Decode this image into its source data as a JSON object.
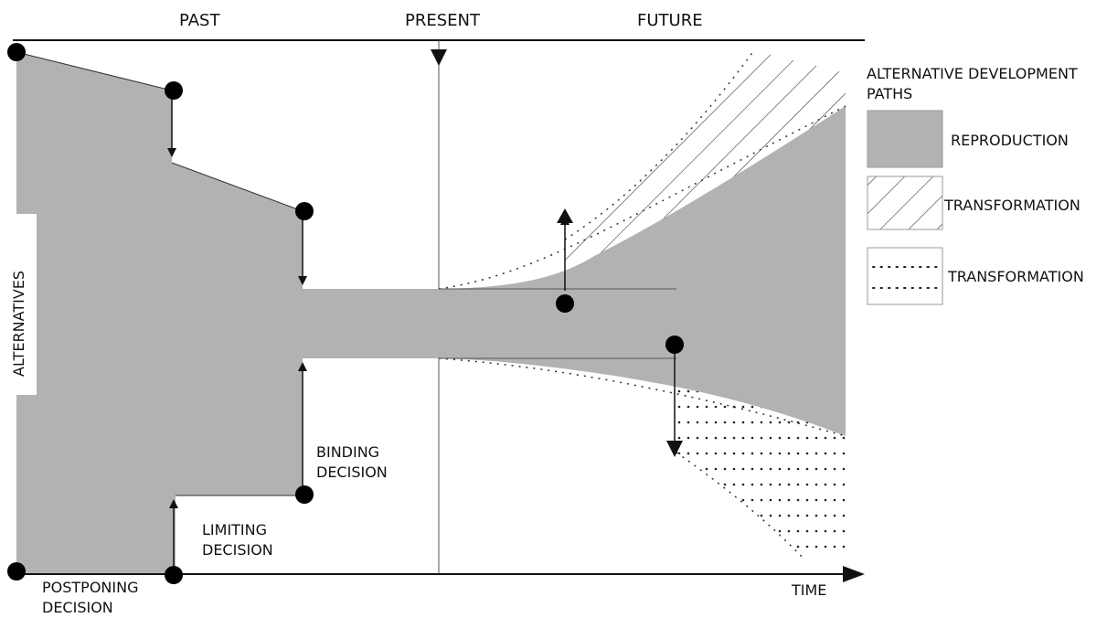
{
  "timeline": {
    "past": "PAST",
    "present": "PRESENT",
    "future": "FUTURE",
    "time_axis": "TIME"
  },
  "y_axis_label": "ALTERNATIVES",
  "decisions": {
    "postponing": [
      "POSTPONING",
      "DECISION"
    ],
    "limiting": [
      "LIMITING",
      "DECISION"
    ],
    "binding": [
      "BINDING",
      "DECISION"
    ]
  },
  "legend": {
    "title": [
      "ALTERNATIVE DEVELOPMENT",
      "PATHS"
    ],
    "items": [
      {
        "label": "REPRODUCTION",
        "pattern": "solid-gray"
      },
      {
        "label": "TRANSFORMATION",
        "pattern": "diagonal-hatch"
      },
      {
        "label": "TRANSFORMATION",
        "pattern": "dotted"
      }
    ]
  },
  "colors": {
    "reproduction_fill": "#b2b2b2",
    "line": "#111111",
    "background": "#ffffff"
  }
}
